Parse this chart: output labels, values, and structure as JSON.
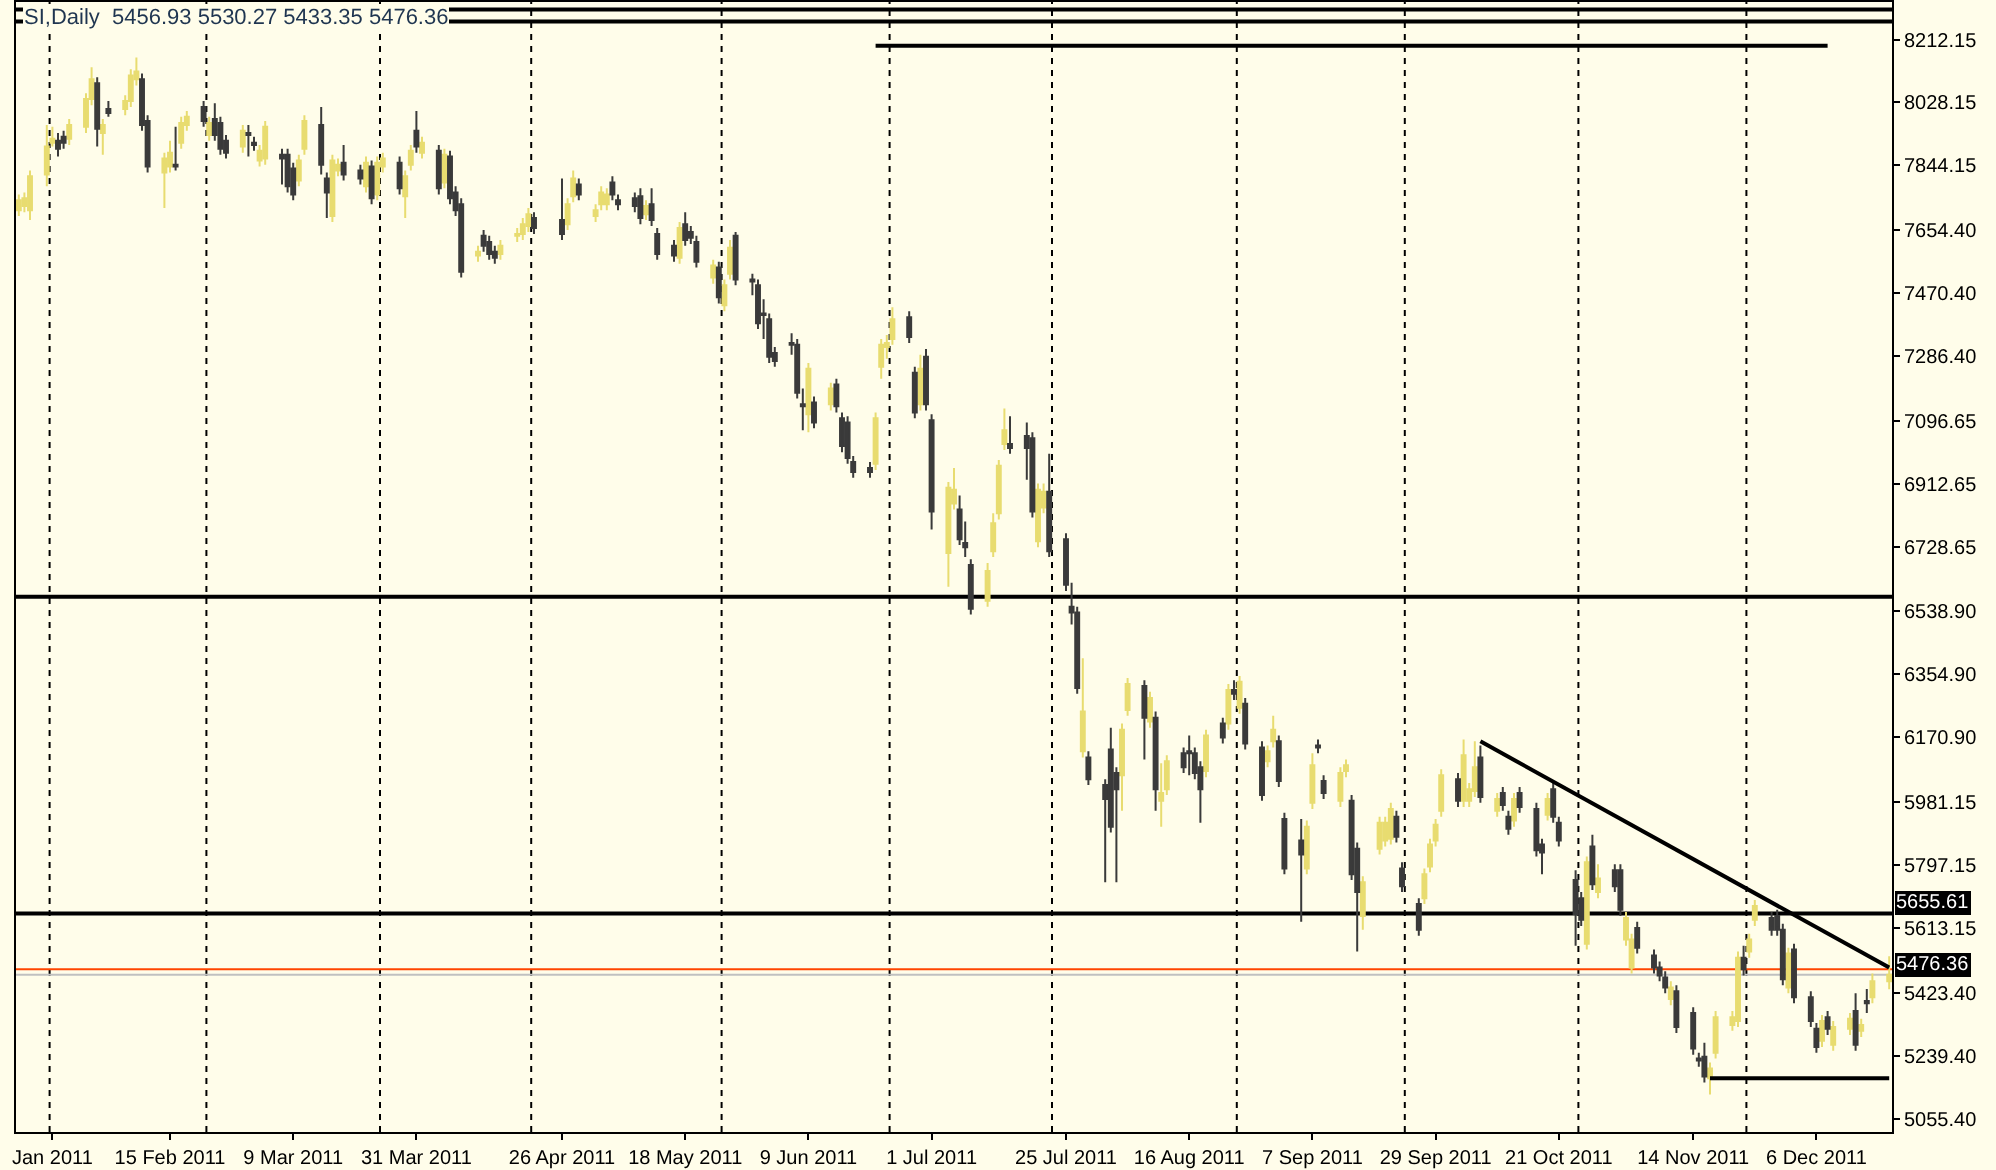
{
  "chart_data": {
    "type": "candlestick",
    "title": "SI,Daily  5456.93 5530.27 5433.35 5476.36",
    "grid": false,
    "xlim": [
      "2011-01-18T12:00",
      "2011-12-19T12:00"
    ],
    "ylim": [
      5016,
      8322
    ],
    "xticks": [
      {
        "value": "2011-01-25",
        "label": "Jan 2011"
      },
      {
        "value": "2011-02-15",
        "label": "15 Feb 2011"
      },
      {
        "value": "2011-03-09",
        "label": "9 Mar 2011"
      },
      {
        "value": "2011-03-31",
        "label": "31 Mar 2011"
      },
      {
        "value": "2011-04-26",
        "label": "26 Apr 2011"
      },
      {
        "value": "2011-05-18",
        "label": "18 May 2011"
      },
      {
        "value": "2011-06-09",
        "label": "9 Jun 2011"
      },
      {
        "value": "2011-07-01",
        "label": "1 Jul 2011"
      },
      {
        "value": "2011-07-25",
        "label": "25 Jul 2011"
      },
      {
        "value": "2011-08-16",
        "label": "16 Aug 2011"
      },
      {
        "value": "2011-09-07",
        "label": "7 Sep 2011"
      },
      {
        "value": "2011-09-29",
        "label": "29 Sep 2011"
      },
      {
        "value": "2011-10-21",
        "label": "21 Oct 2011"
      },
      {
        "value": "2011-11-14",
        "label": "14 Nov 2011"
      },
      {
        "value": "2011-12-06",
        "label": "6 Dec 2011"
      }
    ],
    "yticks": [
      {
        "value": 8212.15,
        "label": "8212.15"
      },
      {
        "value": 8028.15,
        "label": "8028.15"
      },
      {
        "value": 7844.15,
        "label": "7844.15"
      },
      {
        "value": 7654.4,
        "label": "7654.40"
      },
      {
        "value": 7470.4,
        "label": "7470.40"
      },
      {
        "value": 7286.4,
        "label": "7286.40"
      },
      {
        "value": 7096.65,
        "label": "7096.65"
      },
      {
        "value": 6912.65,
        "label": "6912.65"
      },
      {
        "value": 6728.65,
        "label": "6728.65"
      },
      {
        "value": 6538.9,
        "label": "6538.90"
      },
      {
        "value": 6354.9,
        "label": "6354.90"
      },
      {
        "value": 6170.9,
        "label": "6170.90"
      },
      {
        "value": 5981.15,
        "label": "5981.15"
      },
      {
        "value": 5797.15,
        "label": "5797.15"
      },
      {
        "value": 5613.15,
        "label": "5613.15"
      },
      {
        "value": 5423.4,
        "label": "5423.40"
      },
      {
        "value": 5239.4,
        "label": "5239.40"
      },
      {
        "value": 5055.4,
        "label": "5055.40"
      }
    ],
    "ref_lines": [
      {
        "axis": "x",
        "value": "2011-01-24T12:00",
        "line_style": "dashed",
        "color": "#000000"
      },
      {
        "axis": "x",
        "value": "2011-02-21T12:00",
        "line_style": "dashed",
        "color": "#000000"
      },
      {
        "axis": "x",
        "value": "2011-03-24T12:00",
        "line_style": "dashed",
        "color": "#000000"
      },
      {
        "axis": "x",
        "value": "2011-04-20T12:00",
        "line_style": "dashed",
        "color": "#000000"
      },
      {
        "axis": "x",
        "value": "2011-05-24T12:00",
        "line_style": "dashed",
        "color": "#000000"
      },
      {
        "axis": "x",
        "value": "2011-06-23T12:00",
        "line_style": "dashed",
        "color": "#000000"
      },
      {
        "axis": "x",
        "value": "2011-07-22T12:00",
        "line_style": "dashed",
        "color": "#000000"
      },
      {
        "axis": "x",
        "value": "2011-08-24T12:00",
        "line_style": "dashed",
        "color": "#000000"
      },
      {
        "axis": "x",
        "value": "2011-09-23T12:00",
        "line_style": "dashed",
        "color": "#000000"
      },
      {
        "axis": "x",
        "value": "2011-10-24T12:00",
        "line_style": "dashed",
        "color": "#000000"
      },
      {
        "axis": "x",
        "value": "2011-11-23T12:00",
        "line_style": "dashed",
        "color": "#000000"
      },
      {
        "axis": "y",
        "value": 8300,
        "color": "#000000"
      },
      {
        "axis": "y",
        "value": 8265,
        "color": "#000000"
      },
      {
        "axis": "y",
        "value": 6582,
        "color": "#000000"
      },
      {
        "axis": "y",
        "value": 5655.61,
        "label": "5655.61",
        "color": "#000000"
      },
      {
        "axis": "y",
        "value": 5492,
        "color": "#ff4500"
      },
      {
        "axis": "y",
        "value": 5476.36,
        "label": "5476.36",
        "color": "#c0c0c0"
      }
    ],
    "series": [
      {
        "type": "line",
        "color": "#000000",
        "x": [
          "2011-06-21",
          "2011-12-08"
        ],
        "values": [
          8194,
          8194
        ]
      },
      {
        "type": "line",
        "color": "#000000",
        "x": [
          "2011-10-07",
          "2011-12-19"
        ],
        "values": [
          6159,
          5497
        ]
      },
      {
        "type": "line",
        "color": "#000000",
        "x": [
          "2011-11-17",
          "2011-12-19"
        ],
        "values": [
          5173,
          5173
        ]
      },
      {
        "colors": [
          "#e8dc70",
          "#e8dc70",
          "#e8dc70",
          "#e8dc70",
          "#e8dc70",
          "#3a3a3a",
          "#3a3a3a",
          "#e8dc70",
          "#e8dc70",
          "#e8dc70",
          "#3a3a3a",
          "#e8dc70",
          "#3a3a3a",
          "#e8dc70",
          "#e8dc70",
          "#e8dc70",
          "#3a3a3a",
          "#3a3a3a",
          "#e8dc70",
          "#e8dc70",
          "#3a3a3a",
          "#e8dc70",
          "#e8dc70",
          "#3a3a3a",
          "#e8dc70",
          "#3a3a3a",
          "#3a3a3a",
          "#3a3a3a",
          "#e8dc70",
          "#3a3a3a",
          "#3a3a3a",
          "#e8dc70",
          "#e8dc70",
          "#3a3a3a",
          "#3a3a3a",
          "#3a3a3a",
          "#e8dc70",
          "#e8dc70",
          "#3a3a3a",
          "#3a3a3a",
          "#e8dc70",
          "#e8dc70",
          "#3a3a3a",
          "#3a3a3a",
          "#e8dc70",
          "#3a3a3a",
          "#e8dc70",
          "#e8dc70",
          "#3a3a3a",
          "#e8dc70",
          "#e8dc70",
          "#3a3a3a",
          "#e8dc70",
          "#3a3a3a",
          "#e8dc70",
          "#3a3a3a",
          "#3a3a3a",
          "#3a3a3a",
          "#e8dc70",
          "#3a3a3a",
          "#3a3a3a",
          "#3a3a3a",
          "#e8dc70",
          "#e8dc70",
          "#e8dc70",
          "#e8dc70",
          "#3a3a3a",
          "#3a3a3a",
          "#e8dc70",
          "#e8dc70",
          "#3a3a3a",
          "#e8dc70",
          "#e8dc70",
          "#e8dc70",
          "#3a3a3a",
          "#3a3a3a",
          "#3a3a3a",
          "#3a3a3a",
          "#e8dc70",
          "#3a3a3a",
          "#3a3a3a",
          "#3a3a3a",
          "#e8dc70",
          "#3a3a3a",
          "#3a3a3a",
          "#3a3a3a",
          "#e8dc70",
          "#3a3a3a",
          "#e8dc70",
          "#e8dc70",
          "#3a3a3a",
          "#3a3a3a",
          "#3a3a3a",
          "#3a3a3a",
          "#3a3a3a",
          "#3a3a3a",
          "#3a3a3a",
          "#3a3a3a",
          "#3a3a3a",
          "#e8dc70",
          "#3a3a3a",
          "#e8dc70",
          "#3a3a3a",
          "#3a3a3a",
          "#3a3a3a",
          "#3a3a3a",
          "#3a3a3a",
          "#e8dc70",
          "#e8dc70",
          "#e8dc70",
          "#e8dc70",
          "#3a3a3a",
          "#3a3a3a",
          "#e8dc70",
          "#3a3a3a",
          "#3a3a3a",
          "#e8dc70",
          "#e8dc70",
          "#3a3a3a",
          "#3a3a3a",
          "#3a3a3a",
          "#e8dc70",
          "#e8dc70",
          "#e8dc70",
          "#e8dc70",
          "#3a3a3a",
          "#3a3a3a",
          "#3a3a3a",
          "#e8dc70",
          "#e8dc70",
          "#3a3a3a",
          "#3a3a3a",
          "#3a3a3a",
          "#3a3a3a",
          "#e8dc70",
          "#3a3a3a",
          "#3a3a3a",
          "#3a3a3a",
          "#3a3a3a",
          "#e8dc70",
          "#e8dc70",
          "#3a3a3a",
          "#e8dc70",
          "#3a3a3a",
          "#e8dc70",
          "#e8dc70",
          "#3a3a3a",
          "#3a3a3a",
          "#3a3a3a",
          "#3a3a3a",
          "#e8dc70",
          "#3a3a3a",
          "#e8dc70",
          "#3a3a3a",
          "#e8dc70",
          "#3a3a3a",
          "#3a3a3a",
          "#e8dc70",
          "#e8dc70",
          "#3a3a3a",
          "#3a3a3a",
          "#3a3a3a",
          "#e8dc70",
          "#e8dc70",
          "#3a3a3a",
          "#3a3a3a",
          "#e8dc70",
          "#e8dc70",
          "#3a3a3a",
          "#3a3a3a",
          "#e8dc70",
          "#e8dc70",
          "#e8dc70",
          "#e8dc70",
          "#3a3a3a",
          "#3a3a3a",
          "#3a3a3a",
          "#e8dc70",
          "#e8dc70",
          "#e8dc70",
          "#e8dc70",
          "#3a3a3a",
          "#e8dc70",
          "#e8dc70",
          "#e8dc70",
          "#3a3a3a",
          "#e8dc70",
          "#3a3a3a",
          "#3a3a3a",
          "#e8dc70",
          "#3a3a3a",
          "#3a3a3a",
          "#3a3a3a",
          "#e8dc70",
          "#3a3a3a",
          "#3a3a3a",
          "#3a3a3a",
          "#3a3a3a",
          "#e8dc70",
          "#3a3a3a",
          "#e8dc70",
          "#3a3a3a",
          "#3a3a3a",
          "#e8dc70",
          "#e8dc70",
          "#3a3a3a",
          "#3a3a3a",
          "#3a3a3a",
          "#3a3a3a",
          "#e8dc70",
          "#3a3a3a",
          "#3a3a3a",
          "#3a3a3a",
          "#3a3a3a",
          "#e8dc70",
          "#e8dc70",
          "#e8dc70",
          "#e8dc70",
          "#3a3a3a",
          "#e8dc70",
          "#e8dc70",
          "#3a3a3a",
          "#3a3a3a",
          "#3a3a3a",
          "#e8dc70",
          "#3a3a3a",
          "#3a3a3a",
          "#3a3a3a",
          "#e8dc70",
          "#3a3a3a",
          "#e8dc70",
          "#e8dc70",
          "#3a3a3a",
          "#e8dc70",
          "#3a3a3a",
          "#e8dc70",
          "#e8dc70"
        ],
        "x": [
          "2011-01-19",
          "2011-01-20",
          "2011-01-21",
          "2011-01-24",
          "2011-01-25",
          "2011-01-26",
          "2011-01-27",
          "2011-01-28",
          "2011-01-31",
          "2011-02-01",
          "2011-02-02",
          "2011-02-03",
          "2011-02-04",
          "2011-02-07",
          "2011-02-08",
          "2011-02-09",
          "2011-02-10",
          "2011-02-11",
          "2011-02-14",
          "2011-02-15",
          "2011-02-16",
          "2011-02-17",
          "2011-02-18",
          "2011-02-21",
          "2011-02-22",
          "2011-02-23",
          "2011-02-24",
          "2011-02-25",
          "2011-02-28",
          "2011-03-01",
          "2011-03-02",
          "2011-03-03",
          "2011-03-04",
          "2011-03-07",
          "2011-03-08",
          "2011-03-09",
          "2011-03-10",
          "2011-03-11",
          "2011-03-14",
          "2011-03-15",
          "2011-03-16",
          "2011-03-17",
          "2011-03-18",
          "2011-03-21",
          "2011-03-22",
          "2011-03-23",
          "2011-03-24",
          "2011-03-25",
          "2011-03-28",
          "2011-03-29",
          "2011-03-30",
          "2011-03-31",
          "2011-04-01",
          "2011-04-04",
          "2011-04-05",
          "2011-04-06",
          "2011-04-07",
          "2011-04-08",
          "2011-04-11",
          "2011-04-12",
          "2011-04-13",
          "2011-04-14",
          "2011-04-15",
          "2011-04-18",
          "2011-04-19",
          "2011-04-20",
          "2011-04-21",
          "2011-04-26",
          "2011-04-27",
          "2011-04-28",
          "2011-04-29",
          "2011-05-02",
          "2011-05-03",
          "2011-05-04",
          "2011-05-05",
          "2011-05-06",
          "2011-05-09",
          "2011-05-10",
          "2011-05-11",
          "2011-05-12",
          "2011-05-13",
          "2011-05-16",
          "2011-05-17",
          "2011-05-18",
          "2011-05-19",
          "2011-05-20",
          "2011-05-23",
          "2011-05-24",
          "2011-05-25",
          "2011-05-26",
          "2011-05-27",
          "2011-05-30",
          "2011-05-31",
          "2011-06-01",
          "2011-06-02",
          "2011-06-03",
          "2011-06-06",
          "2011-06-07",
          "2011-06-08",
          "2011-06-09",
          "2011-06-10",
          "2011-06-13",
          "2011-06-14",
          "2011-06-15",
          "2011-06-16",
          "2011-06-17",
          "2011-06-20",
          "2011-06-21",
          "2011-06-22",
          "2011-06-23",
          "2011-06-24",
          "2011-06-27",
          "2011-06-28",
          "2011-06-29",
          "2011-06-30",
          "2011-07-01",
          "2011-07-04",
          "2011-07-05",
          "2011-07-06",
          "2011-07-07",
          "2011-07-08",
          "2011-07-11",
          "2011-07-12",
          "2011-07-13",
          "2011-07-14",
          "2011-07-15",
          "2011-07-18",
          "2011-07-19",
          "2011-07-20",
          "2011-07-21",
          "2011-07-22",
          "2011-07-25",
          "2011-07-26",
          "2011-07-27",
          "2011-07-28",
          "2011-07-29",
          "2011-08-01",
          "2011-08-02",
          "2011-08-03",
          "2011-08-04",
          "2011-08-05",
          "2011-08-08",
          "2011-08-09",
          "2011-08-10",
          "2011-08-11",
          "2011-08-12",
          "2011-08-15",
          "2011-08-16",
          "2011-08-17",
          "2011-08-18",
          "2011-08-19",
          "2011-08-22",
          "2011-08-23",
          "2011-08-24",
          "2011-08-25",
          "2011-08-26",
          "2011-08-29",
          "2011-08-30",
          "2011-08-31",
          "2011-09-01",
          "2011-09-02",
          "2011-09-05",
          "2011-09-06",
          "2011-09-07",
          "2011-09-08",
          "2011-09-09",
          "2011-09-12",
          "2011-09-13",
          "2011-09-14",
          "2011-09-15",
          "2011-09-16",
          "2011-09-19",
          "2011-09-20",
          "2011-09-21",
          "2011-09-22",
          "2011-09-23",
          "2011-09-26",
          "2011-09-27",
          "2011-09-28",
          "2011-09-29",
          "2011-09-30",
          "2011-10-03",
          "2011-10-04",
          "2011-10-05",
          "2011-10-06",
          "2011-10-07",
          "2011-10-10",
          "2011-10-11",
          "2011-10-12",
          "2011-10-13",
          "2011-10-14",
          "2011-10-17",
          "2011-10-18",
          "2011-10-19",
          "2011-10-20",
          "2011-10-21",
          "2011-10-24",
          "2011-10-25",
          "2011-10-26",
          "2011-10-27",
          "2011-10-28",
          "2011-10-31",
          "2011-11-01",
          "2011-11-02",
          "2011-11-03",
          "2011-11-04",
          "2011-11-07",
          "2011-11-08",
          "2011-11-09",
          "2011-11-10",
          "2011-11-11",
          "2011-11-14",
          "2011-11-15",
          "2011-11-16",
          "2011-11-17",
          "2011-11-18",
          "2011-11-21",
          "2011-11-22",
          "2011-11-23",
          "2011-11-24",
          "2011-11-25",
          "2011-11-28",
          "2011-11-29",
          "2011-11-30",
          "2011-12-01",
          "2011-12-02",
          "2011-12-05",
          "2011-12-06",
          "2011-12-07",
          "2011-12-08",
          "2011-12-09",
          "2011-12-12",
          "2011-12-13",
          "2011-12-14",
          "2011-12-15",
          "2011-12-16",
          "2011-12-19"
        ],
        "ohlc": [
          [
            7713,
            7759,
            7696,
            7742
          ],
          [
            7725,
            7765,
            7707,
            7748
          ],
          [
            7713,
            7829,
            7684,
            7812
          ],
          [
            7817,
            7962,
            7783,
            7899
          ],
          [
            7910,
            7957,
            7899,
            7922
          ],
          [
            7916,
            7939,
            7870,
            7893
          ],
          [
            7928,
            7945,
            7893,
            7910
          ],
          [
            7922,
            7980,
            7904,
            7962
          ],
          [
            7957,
            8055,
            7939,
            8038
          ],
          [
            8038,
            8131,
            8020,
            8096
          ],
          [
            8084,
            8102,
            7899,
            7951
          ],
          [
            7939,
            7980,
            7875,
            7962
          ],
          [
            8009,
            8032,
            7986,
            7997
          ],
          [
            8009,
            8049,
            7991,
            8032
          ],
          [
            8032,
            8125,
            8015,
            8107
          ],
          [
            8096,
            8160,
            8078,
            8119
          ],
          [
            8096,
            8113,
            7945,
            7962
          ],
          [
            7974,
            7991,
            7823,
            7841
          ],
          [
            7823,
            7881,
            7719,
            7864
          ],
          [
            7841,
            7916,
            7823,
            7881
          ],
          [
            7846,
            7957,
            7829,
            7841
          ],
          [
            7910,
            7986,
            7893,
            7968
          ],
          [
            7962,
            8003,
            7945,
            7986
          ],
          [
            8015,
            8032,
            7957,
            7974
          ],
          [
            7933,
            7986,
            7916,
            7968
          ],
          [
            7980,
            8026,
            7916,
            7933
          ],
          [
            7968,
            7986,
            7875,
            7893
          ],
          [
            7916,
            7933,
            7864,
            7881
          ],
          [
            7899,
            7962,
            7881,
            7945
          ],
          [
            7939,
            7962,
            7870,
            7933
          ],
          [
            7910,
            7928,
            7887,
            7904
          ],
          [
            7858,
            7904,
            7841,
            7887
          ],
          [
            7864,
            7974,
            7846,
            7957
          ],
          [
            7875,
            7893,
            7788,
            7864
          ],
          [
            7875,
            7893,
            7765,
            7783
          ],
          [
            7835,
            7852,
            7742,
            7759
          ],
          [
            7800,
            7875,
            7783,
            7858
          ],
          [
            7893,
            7991,
            7875,
            7974
          ],
          [
            7962,
            8015,
            7817,
            7846
          ],
          [
            7806,
            7823,
            7690,
            7765
          ],
          [
            7696,
            7875,
            7678,
            7858
          ],
          [
            7829,
            7864,
            7812,
            7846
          ],
          [
            7852,
            7904,
            7800,
            7817
          ],
          [
            7829,
            7846,
            7788,
            7806
          ],
          [
            7783,
            7870,
            7765,
            7852
          ],
          [
            7841,
            7858,
            7730,
            7748
          ],
          [
            7759,
            7870,
            7742,
            7852
          ],
          [
            7841,
            7881,
            7823,
            7864
          ],
          [
            7852,
            7870,
            7759,
            7777
          ],
          [
            7754,
            7829,
            7690,
            7812
          ],
          [
            7846,
            7904,
            7829,
            7887
          ],
          [
            7945,
            8003,
            7881,
            7899
          ],
          [
            7881,
            7928,
            7864,
            7910
          ],
          [
            7887,
            7904,
            7759,
            7777
          ],
          [
            7794,
            7893,
            7777,
            7875
          ],
          [
            7870,
            7887,
            7730,
            7748
          ],
          [
            7765,
            7783,
            7696,
            7713
          ],
          [
            7730,
            7748,
            7516,
            7533
          ],
          [
            7580,
            7609,
            7562,
            7591
          ],
          [
            7638,
            7655,
            7591,
            7609
          ],
          [
            7620,
            7638,
            7568,
            7585
          ],
          [
            7591,
            7609,
            7556,
            7574
          ],
          [
            7585,
            7626,
            7568,
            7609
          ],
          [
            7638,
            7661,
            7620,
            7643
          ],
          [
            7643,
            7690,
            7626,
            7672
          ],
          [
            7667,
            7719,
            7649,
            7701
          ],
          [
            7690,
            7707,
            7643,
            7661
          ],
          [
            7684,
            7806,
            7626,
            7643
          ],
          [
            7672,
            7748,
            7655,
            7730
          ],
          [
            7754,
            7829,
            7736,
            7806
          ],
          [
            7788,
            7806,
            7742,
            7759
          ],
          [
            7696,
            7730,
            7678,
            7713
          ],
          [
            7730,
            7783,
            7713,
            7765
          ],
          [
            7730,
            7777,
            7713,
            7759
          ],
          [
            7794,
            7812,
            7742,
            7759
          ],
          [
            7742,
            7759,
            7713,
            7730
          ],
          [
            7748,
            7765,
            7707,
            7725
          ],
          [
            7754,
            7777,
            7672,
            7690
          ],
          [
            7701,
            7742,
            7684,
            7725
          ],
          [
            7730,
            7777,
            7667,
            7684
          ],
          [
            7643,
            7661,
            7568,
            7585
          ],
          [
            7609,
            7626,
            7562,
            7580
          ],
          [
            7574,
            7678,
            7556,
            7661
          ],
          [
            7672,
            7707,
            7609,
            7626
          ],
          [
            7649,
            7667,
            7614,
            7632
          ],
          [
            7620,
            7638,
            7545,
            7562
          ],
          [
            7516,
            7568,
            7498,
            7551
          ],
          [
            7545,
            7562,
            7440,
            7458
          ],
          [
            7435,
            7510,
            7417,
            7493
          ],
          [
            7527,
            7626,
            7510,
            7603
          ],
          [
            7638,
            7649,
            7493,
            7510
          ],
          [
            7510,
            7527,
            7464,
            7504
          ],
          [
            7493,
            7510,
            7365,
            7382
          ],
          [
            7411,
            7452,
            7336,
            7406
          ],
          [
            7394,
            7411,
            7266,
            7284
          ],
          [
            7295,
            7313,
            7255,
            7272
          ],
          [
            7324,
            7353,
            7290,
            7319
          ],
          [
            7319,
            7336,
            7162,
            7179
          ],
          [
            7145,
            7191,
            7069,
            7139
          ],
          [
            7116,
            7266,
            7063,
            7249
          ],
          [
            7150,
            7168,
            7075,
            7092
          ],
          [
            7145,
            7208,
            7127,
            7191
          ],
          [
            7203,
            7220,
            7121,
            7139
          ],
          [
            7104,
            7121,
            7005,
            7023
          ],
          [
            7092,
            7110,
            6971,
            6988
          ],
          [
            6976,
            6994,
            6930,
            6947
          ],
          [
            6959,
            6976,
            6930,
            6947
          ],
          [
            6971,
            7121,
            6953,
            7104
          ],
          [
            7255,
            7336,
            7220,
            7319
          ],
          [
            7313,
            7348,
            7278,
            7324
          ],
          [
            7336,
            7429,
            7319,
            7394
          ],
          [
            7400,
            7417,
            7324,
            7342
          ],
          [
            7237,
            7255,
            7104,
            7121
          ],
          [
            7145,
            7290,
            7127,
            7249
          ],
          [
            7284,
            7307,
            7127,
            7145
          ],
          [
            7098,
            7116,
            6779,
            6831
          ],
          [
            6710,
            6918,
            6611,
            6901
          ],
          [
            6855,
            6959,
            6837,
            6895
          ],
          [
            6837,
            6878,
            6733,
            6750
          ],
          [
            6739,
            6802,
            6698,
            6727
          ],
          [
            6675,
            6692,
            6530,
            6547
          ],
          [
            6570,
            6681,
            6553,
            6657
          ],
          [
            6715,
            6826,
            6698,
            6797
          ],
          [
            6826,
            6982,
            6808,
            6965
          ],
          [
            7029,
            7133,
            7011,
            7069
          ],
          [
            7029,
            7110,
            7000,
            7017
          ],
          [
            7052,
            7092,
            6924,
            7017
          ],
          [
            7046,
            7063,
            6814,
            6831
          ],
          [
            6744,
            6913,
            6727,
            6895
          ],
          [
            6843,
            6913,
            6826,
            6889
          ],
          [
            6889,
            7000,
            6698,
            6715
          ],
          [
            6750,
            6768,
            6599,
            6617
          ],
          [
            6553,
            6623,
            6501,
            6536
          ],
          [
            6536,
            6553,
            6298,
            6315
          ],
          [
            6130,
            6402,
            6112,
            6246
          ],
          [
            6112,
            6130,
            6031,
            6048
          ],
          [
            6031,
            6048,
            5747,
            5990
          ],
          [
            6135,
            6199,
            5892,
            5909
          ],
          [
            6066,
            6083,
            5747,
            6019
          ],
          [
            6060,
            6211,
            5956,
            6193
          ],
          [
            6251,
            6344,
            6234,
            6327
          ],
          [
            6321,
            6338,
            6106,
            6228
          ],
          [
            6217,
            6304,
            6199,
            6286
          ],
          [
            6228,
            6246,
            5956,
            6019
          ],
          [
            5985,
            6095,
            5909,
            6008
          ],
          [
            6019,
            6118,
            6002,
            6101
          ],
          [
            6124,
            6141,
            6066,
            6083
          ],
          [
            6130,
            6176,
            6060,
            6124
          ],
          [
            6124,
            6141,
            6048,
            6066
          ],
          [
            6083,
            6101,
            5921,
            6019
          ],
          [
            6072,
            6193,
            6054,
            6176
          ],
          [
            6211,
            6228,
            6153,
            6170
          ],
          [
            6211,
            6327,
            6193,
            6309
          ],
          [
            6309,
            6338,
            6280,
            6298
          ],
          [
            6257,
            6350,
            6240,
            6333
          ],
          [
            6269,
            6286,
            6135,
            6153
          ],
          [
            6141,
            6159,
            5985,
            6002
          ],
          [
            6101,
            6147,
            6083,
            6130
          ],
          [
            6159,
            6234,
            6141,
            6193
          ],
          [
            6159,
            6176,
            6025,
            6043
          ],
          [
            5932,
            5950,
            5770,
            5787
          ],
          [
            5869,
            5932,
            5631,
            5828
          ],
          [
            5787,
            5927,
            5770,
            5909
          ],
          [
            5979,
            6124,
            5961,
            6089
          ],
          [
            6147,
            6164,
            6124,
            6141
          ],
          [
            6043,
            6060,
            5990,
            6008
          ],
          [
            5985,
            6083,
            5967,
            6066
          ],
          [
            6072,
            6106,
            6054,
            6089
          ],
          [
            5985,
            6002,
            5753,
            5770
          ],
          [
            5845,
            5863,
            5544,
            5718
          ],
          [
            5648,
            5764,
            5608,
            5747
          ],
          [
            5845,
            5938,
            5828,
            5921
          ],
          [
            5869,
            5938,
            5851,
            5921
          ],
          [
            5874,
            5979,
            5857,
            5961
          ],
          [
            5938,
            5956,
            5863,
            5880
          ],
          [
            5787,
            5805,
            5718,
            5735
          ],
          [
            5683,
            5700,
            5590,
            5608
          ],
          [
            5700,
            5787,
            5683,
            5770
          ],
          [
            5793,
            5874,
            5776,
            5857
          ],
          [
            5869,
            5932,
            5851,
            5915
          ],
          [
            5956,
            6077,
            5938,
            6060
          ],
          [
            6048,
            6066,
            5967,
            5985
          ],
          [
            5985,
            6164,
            5967,
            6118
          ],
          [
            5985,
            6037,
            5967,
            6019
          ],
          [
            6014,
            6159,
            5996,
            6083
          ],
          [
            6112,
            6147,
            5979,
            5996
          ],
          [
            5956,
            6008,
            5938,
            5990
          ],
          [
            6008,
            6025,
            5956,
            5973
          ],
          [
            5938,
            5956,
            5886,
            5903
          ],
          [
            5927,
            6008,
            5909,
            5990
          ],
          [
            6008,
            6025,
            5950,
            5967
          ],
          [
            5961,
            5979,
            5822,
            5840
          ],
          [
            5857,
            5874,
            5770,
            5834
          ],
          [
            5944,
            6008,
            5927,
            5990
          ],
          [
            6019,
            6037,
            5921,
            5938
          ],
          [
            5921,
            5938,
            5851,
            5869
          ],
          [
            5753,
            5782,
            5561,
            5654
          ],
          [
            5700,
            5718,
            5619,
            5637
          ],
          [
            5567,
            5822,
            5550,
            5805
          ],
          [
            5851,
            5886,
            5724,
            5741
          ],
          [
            5718,
            5799,
            5700,
            5758
          ],
          [
            5782,
            5799,
            5718,
            5735
          ],
          [
            5782,
            5799,
            5648,
            5666
          ],
          [
            5579,
            5660,
            5561,
            5642
          ],
          [
            5497,
            5596,
            5480,
            5579
          ],
          [
            5613,
            5631,
            5538,
            5555
          ],
          [
            5532,
            5550,
            5480,
            5497
          ],
          [
            5497,
            5515,
            5457,
            5474
          ],
          [
            5468,
            5486,
            5422,
            5439
          ],
          [
            5405,
            5457,
            5387,
            5439
          ],
          [
            5428,
            5445,
            5306,
            5323
          ],
          [
            5364,
            5381,
            5242,
            5260
          ],
          [
            5231,
            5248,
            5207,
            5225
          ],
          [
            5236,
            5277,
            5161,
            5178
          ],
          [
            5173,
            5219,
            5126,
            5202
          ],
          [
            5248,
            5370,
            5231,
            5352
          ],
          [
            5329,
            5370,
            5312,
            5352
          ],
          [
            5341,
            5544,
            5323,
            5526
          ],
          [
            5526,
            5561,
            5474,
            5492
          ],
          [
            5544,
            5596,
            5526,
            5579
          ],
          [
            5637,
            5695,
            5619,
            5677
          ],
          [
            5642,
            5660,
            5590,
            5608
          ],
          [
            5648,
            5666,
            5590,
            5608
          ],
          [
            5608,
            5625,
            5445,
            5463
          ],
          [
            5439,
            5555,
            5422,
            5538
          ],
          [
            5550,
            5567,
            5393,
            5410
          ],
          [
            5410,
            5428,
            5323,
            5341
          ],
          [
            5318,
            5335,
            5248,
            5265
          ],
          [
            5283,
            5358,
            5265,
            5341
          ],
          [
            5352,
            5370,
            5300,
            5318
          ],
          [
            5271,
            5341,
            5254,
            5323
          ],
          [
            5318,
            5364,
            5300,
            5347
          ],
          [
            5370,
            5422,
            5254,
            5271
          ],
          [
            5312,
            5347,
            5294,
            5329
          ],
          [
            5399,
            5434,
            5364,
            5393
          ],
          [
            5410,
            5480,
            5393,
            5457
          ],
          [
            5456.93,
            5530.27,
            5433.35,
            5476.36
          ]
        ]
      }
    ]
  }
}
